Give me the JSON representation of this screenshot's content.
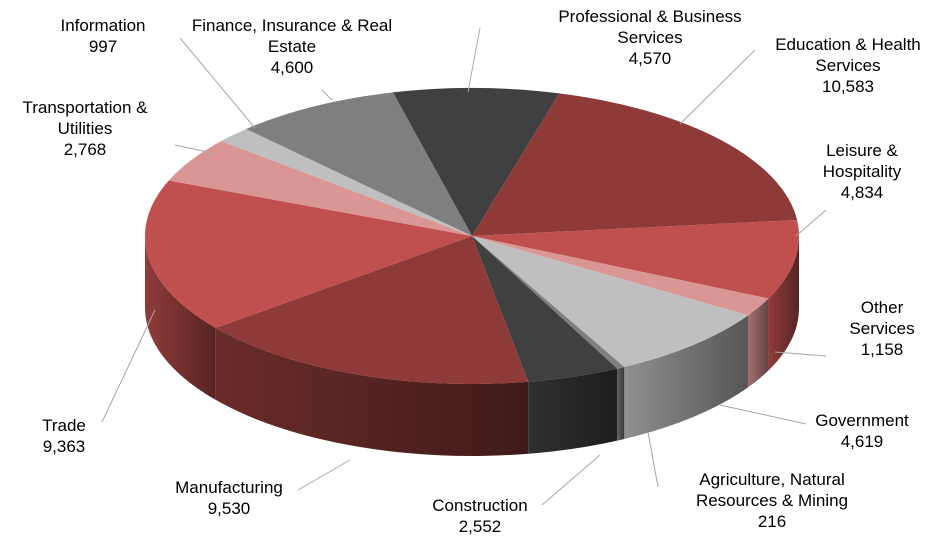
{
  "chart_data": {
    "type": "pie",
    "categories": [
      "Professional & Business Services",
      "Education & Health Services",
      "Leisure & Hospitality",
      "Other Services",
      "Government",
      "Agriculture, Natural Resources & Mining",
      "Construction",
      "Manufacturing",
      "Trade",
      "Transportation & Utilities",
      "Information",
      "Finance, Insurance & Real Estate"
    ],
    "values": [
      4570,
      10583,
      4834,
      1158,
      4619,
      216,
      2552,
      9530,
      9363,
      2768,
      997,
      4600
    ],
    "value_labels": [
      "4,570",
      "10,583",
      "4,834",
      "1,158",
      "4,619",
      "216",
      "2,552",
      "9,530",
      "9,363",
      "2,768",
      "997",
      "4,600"
    ],
    "colors": [
      "#404040",
      "#8e3a38",
      "#c0504d",
      "#d99694",
      "#bfbfbf",
      "#7f7f7f",
      "#404040",
      "#8e3a38",
      "#c0504d",
      "#d99694",
      "#bfbfbf",
      "#7f7f7f"
    ]
  }
}
